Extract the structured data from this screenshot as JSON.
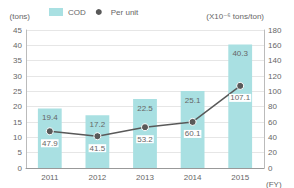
{
  "chart_data": {
    "type": "bar",
    "categories": [
      "2011",
      "2012",
      "2013",
      "2014",
      "2015"
    ],
    "x_label": "(FY)",
    "y_label": "(tons)",
    "y2_label": "(X10⁻⁶ tons/ton)",
    "series": [
      {
        "name": "COD",
        "type": "bar",
        "color": "#a9e0e2",
        "values": [
          19.4,
          17.2,
          22.5,
          25.1,
          40.3
        ]
      },
      {
        "name": "Per unit",
        "type": "line",
        "axis": "y2",
        "color": "#595959",
        "marker": "circle",
        "line_style": "solid",
        "values": [
          47.9,
          41.5,
          53.2,
          60.1,
          107.1
        ]
      }
    ],
    "ylim": [
      0,
      45
    ],
    "yticks": [
      0,
      5,
      10,
      15,
      20,
      25,
      30,
      35,
      40,
      45
    ],
    "y2lim": [
      0,
      180
    ],
    "y2ticks": [
      0,
      20,
      40,
      60,
      80,
      100,
      120,
      140,
      160,
      180
    ],
    "grid": true,
    "data_labels": true,
    "legend": "top-left"
  }
}
